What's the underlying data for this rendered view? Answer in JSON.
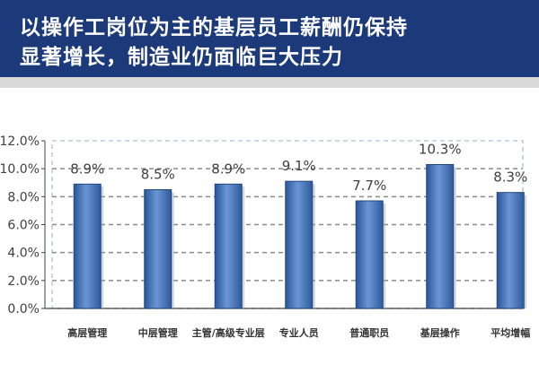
{
  "header": {
    "title_line1": "以操作工岗位为主的基层员工薪酬仍保持",
    "title_line2": "显著增长，制造业仍面临巨大压力"
  },
  "colors": {
    "header_bg": "#1c3a7a",
    "bar_fill": "#3e6fb4",
    "divider": "#d9d9d9"
  },
  "chart_data": {
    "type": "bar",
    "categories": [
      "高层管理",
      "中层管理",
      "主管/高级专业层",
      "专业人员",
      "普通职员",
      "基层操作",
      "平均增幅"
    ],
    "values": [
      8.9,
      8.5,
      8.9,
      9.1,
      7.7,
      10.3,
      8.3
    ],
    "data_labels": [
      "8.9%",
      "8.5%",
      "8.9%",
      "9.1%",
      "7.7%",
      "10.3%",
      "8.3%"
    ],
    "y_ticks": [
      "0.0%",
      "2.0%",
      "4.0%",
      "6.0%",
      "8.0%",
      "10.0%",
      "12.0%"
    ],
    "y_tick_values": [
      0,
      2,
      4,
      6,
      8,
      10,
      12
    ],
    "ylim": [
      0,
      12
    ],
    "title": "",
    "xlabel": "",
    "ylabel": "",
    "grid": true
  }
}
